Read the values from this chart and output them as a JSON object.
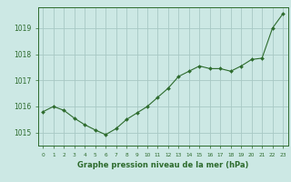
{
  "x": [
    0,
    1,
    2,
    3,
    4,
    5,
    6,
    7,
    8,
    9,
    10,
    11,
    12,
    13,
    14,
    15,
    16,
    17,
    18,
    19,
    20,
    21,
    22,
    23
  ],
  "y": [
    1015.8,
    1016.0,
    1015.85,
    1015.55,
    1015.3,
    1015.1,
    1014.92,
    1015.15,
    1015.5,
    1015.75,
    1016.0,
    1016.35,
    1016.7,
    1017.15,
    1017.35,
    1017.55,
    1017.45,
    1017.45,
    1017.35,
    1017.55,
    1017.8,
    1017.85,
    1019.0,
    1019.55
  ],
  "yticks": [
    1015,
    1016,
    1017,
    1018,
    1019
  ],
  "xticks": [
    0,
    1,
    2,
    3,
    4,
    5,
    6,
    7,
    8,
    9,
    10,
    11,
    12,
    13,
    14,
    15,
    16,
    17,
    18,
    19,
    20,
    21,
    22,
    23
  ],
  "xlabel": "Graphe pression niveau de la mer (hPa)",
  "ylim": [
    1014.5,
    1019.8
  ],
  "xlim": [
    -0.5,
    23.5
  ],
  "line_color": "#2d6b2d",
  "marker_color": "#2d6b2d",
  "bg_color": "#cce8e4",
  "grid_color": "#a8c8c4",
  "border_color": "#2d6b2d",
  "xlabel_color": "#2d6b2d",
  "tick_color": "#2d6b2d"
}
